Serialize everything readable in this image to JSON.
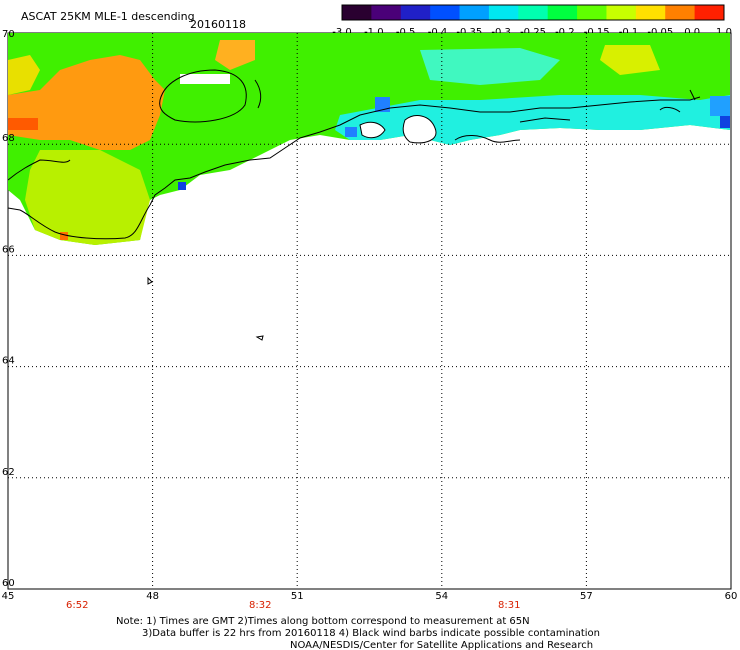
{
  "header": {
    "title": "ASCAT 25KM MLE-1 descending",
    "date": "20160118"
  },
  "colorbar": {
    "ticks": [
      "-3.0",
      "-1.0",
      "-0.5",
      "-0.4",
      "-0.35",
      "-0.3",
      "-0.25",
      "-0.2",
      "-0.15",
      "-0.1",
      "-0.05",
      "0.0",
      "1.0"
    ],
    "colors": [
      "#2a0030",
      "#4a0078",
      "#2020c8",
      "#0050ff",
      "#00a0ff",
      "#00e8f0",
      "#00ffb0",
      "#00ff40",
      "#60ff00",
      "#c8ff00",
      "#ffe000",
      "#ff8000",
      "#ff2000"
    ]
  },
  "axes": {
    "lon_ticks": [
      "45",
      "48",
      "51",
      "54",
      "57",
      "60"
    ],
    "lat_ticks": [
      "70",
      "68",
      "66",
      "64",
      "62",
      "60"
    ]
  },
  "times": [
    "6:52",
    "8:32",
    "8:31"
  ],
  "notes": {
    "line1": "Note: 1) Times are GMT 2)Times along bottom correspond to measurement at 65N",
    "line2": "3)Data buffer is 22 hrs from 20160118 4) Black wind barbs indicate possible contamination",
    "line3": "NOAA/NESDIS/Center for Satellite Applications and Research"
  }
}
